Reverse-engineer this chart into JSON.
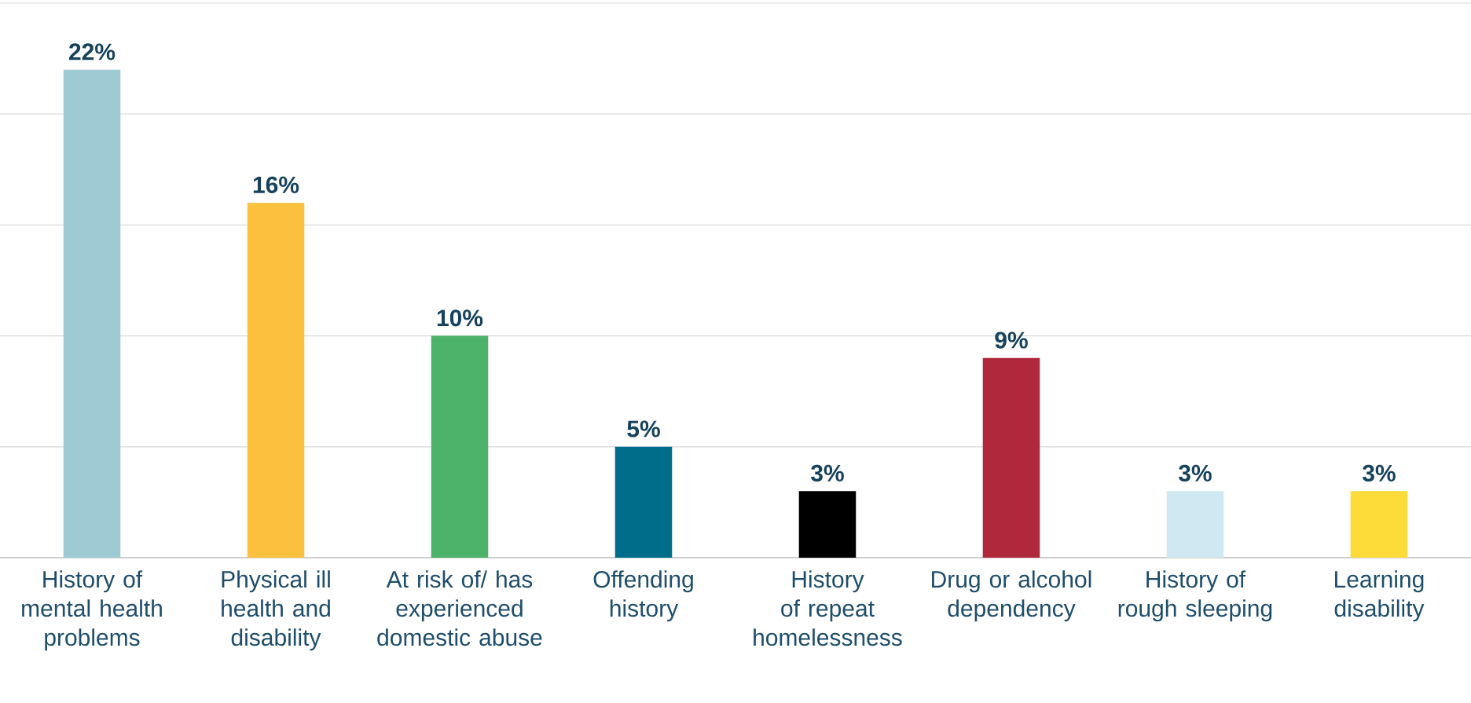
{
  "chart_data": {
    "type": "bar",
    "categories": [
      "History of mental health problems",
      "Physical ill health and disability",
      "At risk of/ has experienced domestic abuse",
      "Offending history",
      "History of repeat homelessness",
      "Drug or alcohol dependency",
      "History of rough sleeping",
      "Learning disability"
    ],
    "values": [
      22,
      16,
      10,
      5,
      3,
      9,
      3,
      3
    ],
    "value_labels": [
      "22%",
      "16%",
      "10%",
      "5%",
      "3%",
      "9%",
      "3%",
      "3%"
    ],
    "colors": [
      "#9ecbd3",
      "#fbc13e",
      "#4db26a",
      "#006e8a",
      "#000000",
      "#b0283c",
      "#d0e8f1",
      "#fddc3a"
    ],
    "ylim": [
      0,
      25
    ],
    "yticks": [
      {
        "value": 0,
        "label": null
      },
      {
        "value": 5,
        "label": null
      },
      {
        "value": 10,
        "label": null
      },
      {
        "value": 15,
        "label": null
      },
      {
        "value": 20,
        "label": null
      },
      {
        "value": 25,
        "label": null
      }
    ],
    "tick_labels": "x",
    "grid": "y"
  }
}
